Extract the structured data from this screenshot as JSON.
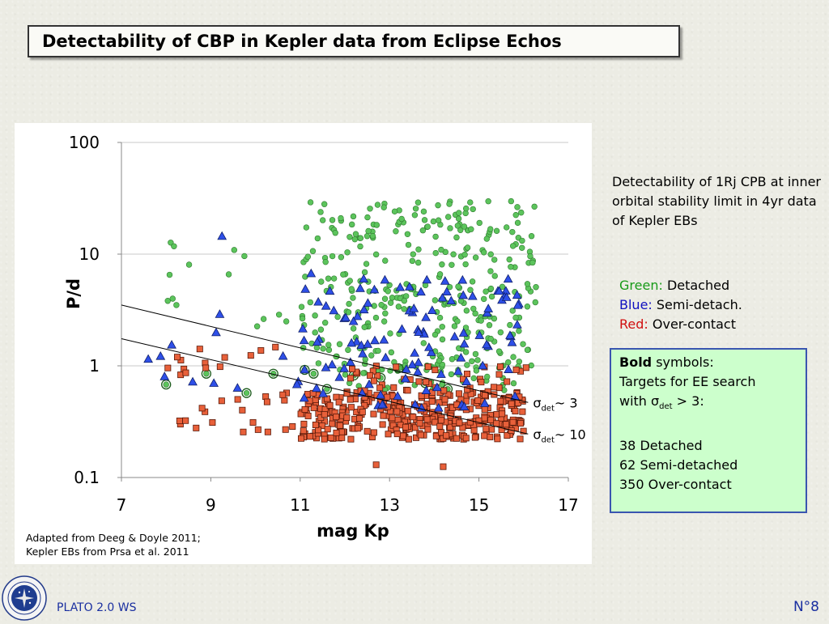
{
  "title": "Detectability of CBP in Kepler data from Eclipse Echos",
  "description": "Detectability of 1Rj CPB at inner orbital stability limit in 4yr data of Kepler EBs",
  "legend": {
    "green_key": "Green:",
    "green_text": "Detached",
    "blue_key": "Blue:",
    "blue_text": "Semi-detach.",
    "red_key": "Red:",
    "red_text": "Over-contact"
  },
  "bold_box": {
    "bold_word": "Bold",
    "rest_heading": " symbols:",
    "line1": "Targets for EE search",
    "line2_prefix": "with σ",
    "line2_sub": "det",
    "line2_suffix": " > 3:",
    "count_detached": "38 Detached",
    "count_semi": "62 Semi-detached",
    "count_over": "350 Over-contact"
  },
  "credit": {
    "line1": "Adapted from Deeg & Doyle 2011;",
    "line2": "Kepler EBs from Prsa et al. 2011"
  },
  "footer": {
    "left": "PLATO 2.0 WS",
    "right": "N°8"
  },
  "colors": {
    "detached": "#5cc45c",
    "semi_detached": "#2e4fe8",
    "over_contact": "#e8603a",
    "box_fill": "#ccffcc",
    "footer_text": "#1a2fa0"
  },
  "chart_data": {
    "type": "scatter",
    "xlabel": "mag Kp",
    "ylabel": "P/d",
    "xlim": [
      7,
      17
    ],
    "ylim": [
      0.1,
      100
    ],
    "yscale": "log",
    "xticks": [
      "7",
      "9",
      "11",
      "13",
      "15",
      "17"
    ],
    "yticks": [
      "0.1",
      "1",
      "10",
      "100"
    ],
    "grid": "horizontal",
    "lines": [
      {
        "label_prefix": "σ",
        "label_sub": "det",
        "label_suffix": "~ 3",
        "x": [
          7,
          16.1
        ],
        "y": [
          3.5,
          0.47
        ]
      },
      {
        "label_prefix": "σ",
        "label_sub": "det",
        "label_suffix": "~ 10",
        "x": [
          7,
          16.1
        ],
        "y": [
          1.75,
          0.245
        ]
      }
    ],
    "series": [
      {
        "name": "Detached",
        "marker": "circle",
        "regions": [
          {
            "x": [
              11.0,
              16.3
            ],
            "y": [
              0.9,
              30
            ],
            "n": 330
          },
          {
            "x": [
              12.0,
              16.0
            ],
            "y": [
              0.6,
              1.2
            ],
            "n": 40
          },
          {
            "x": [
              8.0,
              11.0
            ],
            "y": [
              2.0,
              15
            ],
            "n": 14
          }
        ],
        "highlighted": [
          {
            "x": 8.0,
            "y": 0.68
          },
          {
            "x": 8.9,
            "y": 0.85
          },
          {
            "x": 9.8,
            "y": 0.57
          },
          {
            "x": 10.4,
            "y": 0.85
          },
          {
            "x": 11.3,
            "y": 0.85
          },
          {
            "x": 11.6,
            "y": 0.62
          },
          {
            "x": 12.2,
            "y": 0.82
          },
          {
            "x": 12.8,
            "y": 0.78
          },
          {
            "x": 13.2,
            "y": 0.95
          },
          {
            "x": 13.8,
            "y": 0.7
          },
          {
            "x": 14.3,
            "y": 0.62
          },
          {
            "x": 11.1,
            "y": 0.92
          }
        ]
      },
      {
        "name": "Semi-detached",
        "marker": "triangle",
        "regions": [
          {
            "x": [
              11.0,
              16.0
            ],
            "y": [
              0.4,
              7
            ],
            "n": 110
          },
          {
            "x": [
              7.6,
              11.0
            ],
            "y": [
              0.5,
              2.0
            ],
            "n": 10
          }
        ],
        "points": [
          {
            "x": 9.25,
            "y": 14.5
          },
          {
            "x": 9.2,
            "y": 2.9
          },
          {
            "x": 7.6,
            "y": 1.15
          }
        ]
      },
      {
        "name": "Over-contact",
        "marker": "square",
        "regions": [
          {
            "x": [
              11.0,
              16.0
            ],
            "y": [
              0.22,
              0.6
            ],
            "n": 380
          },
          {
            "x": [
              7.9,
              11.0
            ],
            "y": [
              0.25,
              1.5
            ],
            "n": 35
          },
          {
            "x": [
              12.0,
              16.2
            ],
            "y": [
              0.6,
              1.0
            ],
            "n": 40
          }
        ],
        "points": [
          {
            "x": 12.7,
            "y": 0.13
          },
          {
            "x": 14.2,
            "y": 0.125
          }
        ]
      }
    ]
  }
}
